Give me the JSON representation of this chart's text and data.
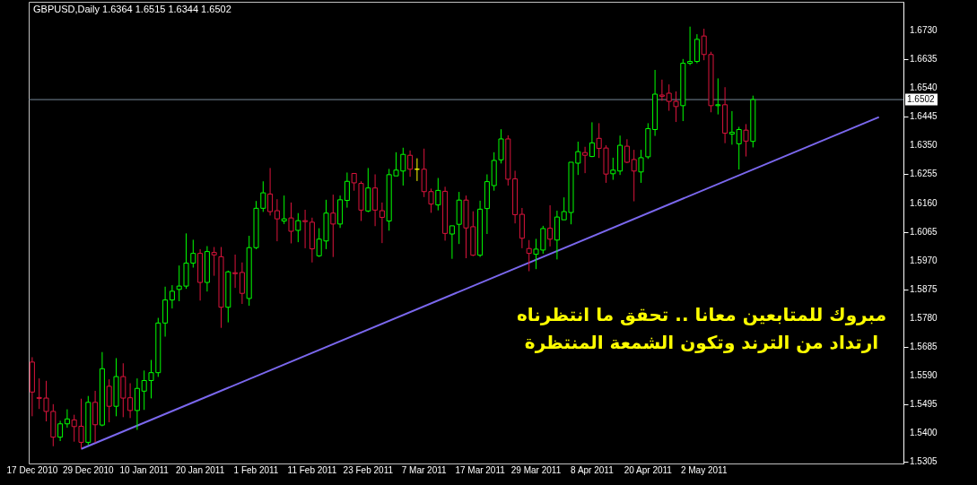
{
  "chart_data": {
    "type": "candlestick",
    "title": "GBPUSD,Daily  1.6364 1.6515 1.6344 1.6502",
    "categories": [
      "17 Dec 2010",
      null,
      null,
      null,
      null,
      null,
      null,
      null,
      "29 Dec 2010",
      null,
      null,
      null,
      null,
      null,
      null,
      null,
      "10 Jan 2011",
      null,
      null,
      null,
      null,
      null,
      null,
      null,
      "20 Jan 2011",
      null,
      null,
      null,
      null,
      null,
      null,
      null,
      "1 Feb 2011",
      null,
      null,
      null,
      null,
      null,
      null,
      null,
      "11 Feb 2011",
      null,
      null,
      null,
      null,
      null,
      null,
      null,
      "23 Feb 2011",
      null,
      null,
      null,
      null,
      null,
      null,
      null,
      "7 Mar 2011",
      null,
      null,
      null,
      null,
      null,
      null,
      null,
      "17 Mar 2011",
      null,
      null,
      null,
      null,
      null,
      null,
      null,
      "29 Mar 2011",
      null,
      null,
      null,
      null,
      null,
      null,
      null,
      "8 Apr 2011",
      null,
      null,
      null,
      null,
      null,
      null,
      null,
      "20 Apr 2011",
      null,
      null,
      null,
      null,
      null,
      null,
      null,
      "2 May 2011",
      null,
      null,
      null,
      null,
      null,
      null,
      null,
      null,
      null,
      null,
      null,
      null,
      null,
      null,
      null,
      null,
      null,
      null,
      null,
      null,
      null,
      null,
      null,
      null,
      null,
      null,
      null,
      null
    ],
    "ohlc": [
      [
        1.5635,
        1.5651,
        1.5456,
        1.5536
      ],
      [
        1.5518,
        1.5581,
        1.548,
        1.5515
      ],
      [
        1.5516,
        1.5573,
        1.5439,
        1.5472
      ],
      [
        1.5472,
        1.5496,
        1.5357,
        1.5387
      ],
      [
        1.5387,
        1.5441,
        1.5374,
        1.5431
      ],
      [
        1.5431,
        1.5479,
        1.5418,
        1.5447
      ],
      [
        1.5444,
        1.5461,
        1.5372,
        1.5422
      ],
      [
        1.5423,
        1.5514,
        1.5349,
        1.537
      ],
      [
        1.537,
        1.5523,
        1.5361,
        1.5502
      ],
      [
        1.5502,
        1.554,
        1.5369,
        1.5428
      ],
      [
        1.5427,
        1.5668,
        1.5423,
        1.5613
      ],
      [
        1.5555,
        1.5578,
        1.5436,
        1.5489
      ],
      [
        1.5489,
        1.5648,
        1.5456,
        1.5587
      ],
      [
        1.5587,
        1.5631,
        1.5453,
        1.5516
      ],
      [
        1.5517,
        1.5565,
        1.545,
        1.5475
      ],
      [
        1.5475,
        1.5581,
        1.5411,
        1.5548
      ],
      [
        1.5539,
        1.5607,
        1.5477,
        1.5574
      ],
      [
        1.5574,
        1.5642,
        1.5515,
        1.56
      ],
      [
        1.56,
        1.5781,
        1.5586,
        1.5764
      ],
      [
        1.5764,
        1.5884,
        1.5719,
        1.584
      ],
      [
        1.584,
        1.5889,
        1.5812,
        1.5869
      ],
      [
        1.5875,
        1.5954,
        1.5836,
        1.5886
      ],
      [
        1.5886,
        1.606,
        1.5877,
        1.5962
      ],
      [
        1.5962,
        1.6039,
        1.5947,
        1.5994
      ],
      [
        1.5994,
        1.6008,
        1.5838,
        1.5898
      ],
      [
        1.5898,
        1.6018,
        1.5868,
        1.6
      ],
      [
        1.5997,
        1.6015,
        1.592,
        1.5989
      ],
      [
        1.5983,
        1.6015,
        1.5748,
        1.5816
      ],
      [
        1.5816,
        1.5937,
        1.5766,
        1.5933
      ],
      [
        1.593,
        1.599,
        1.588,
        1.5927
      ],
      [
        1.5931,
        1.5964,
        1.5827,
        1.5862
      ],
      [
        1.5845,
        1.6052,
        1.5821,
        1.6013
      ],
      [
        1.6013,
        1.6167,
        1.6008,
        1.6143
      ],
      [
        1.6143,
        1.6232,
        1.6131,
        1.6194
      ],
      [
        1.619,
        1.6276,
        1.6119,
        1.6132
      ],
      [
        1.6135,
        1.6173,
        1.6034,
        1.6108
      ],
      [
        1.6101,
        1.6185,
        1.6091,
        1.6108
      ],
      [
        1.6111,
        1.6162,
        1.6027,
        1.6067
      ],
      [
        1.607,
        1.6127,
        1.6031,
        1.6102
      ],
      [
        1.6102,
        1.6138,
        1.6011,
        1.6099
      ],
      [
        1.6097,
        1.6112,
        1.5964,
        1.6009
      ],
      [
        1.5986,
        1.6077,
        1.5982,
        1.6041
      ],
      [
        1.6035,
        1.6171,
        1.6008,
        1.6127
      ],
      [
        1.6127,
        1.6188,
        1.5982,
        1.6091
      ],
      [
        1.6091,
        1.6185,
        1.6078,
        1.6171
      ],
      [
        1.6169,
        1.6261,
        1.6145,
        1.6232
      ],
      [
        1.6258,
        1.6258,
        1.6201,
        1.6227
      ],
      [
        1.6225,
        1.6232,
        1.6101,
        1.6137
      ],
      [
        1.6134,
        1.6276,
        1.613,
        1.621
      ],
      [
        1.621,
        1.6255,
        1.6084,
        1.6137
      ],
      [
        1.6135,
        1.6162,
        1.6028,
        1.6113
      ],
      [
        1.6101,
        1.6273,
        1.6069,
        1.6254
      ],
      [
        1.625,
        1.6328,
        1.625,
        1.6269
      ],
      [
        1.6266,
        1.6343,
        1.6218,
        1.6321
      ],
      [
        1.6318,
        1.6334,
        1.6247,
        1.6272
      ],
      [
        1.6272,
        1.6308,
        1.6233,
        1.6272
      ],
      [
        1.6272,
        1.634,
        1.618,
        1.6198
      ],
      [
        1.6198,
        1.6208,
        1.6128,
        1.6157
      ],
      [
        1.6154,
        1.6243,
        1.6136,
        1.6202
      ],
      [
        1.6199,
        1.6214,
        1.6036,
        1.606
      ],
      [
        1.6058,
        1.6085,
        1.5976,
        1.6085
      ],
      [
        1.609,
        1.6197,
        1.6025,
        1.617
      ],
      [
        1.617,
        1.6185,
        1.5978,
        1.6078
      ],
      [
        1.6082,
        1.6133,
        1.5985,
        1.5988
      ],
      [
        1.5988,
        1.6168,
        1.5982,
        1.614
      ],
      [
        1.6142,
        1.6255,
        1.6058,
        1.6231
      ],
      [
        1.6218,
        1.6328,
        1.6201,
        1.6301
      ],
      [
        1.6303,
        1.6404,
        1.6291,
        1.6372
      ],
      [
        1.6372,
        1.6384,
        1.6218,
        1.6239
      ],
      [
        1.624,
        1.6267,
        1.6093,
        1.6122
      ],
      [
        1.6123,
        1.6144,
        1.6011,
        1.6044
      ],
      [
        1.601,
        1.6038,
        1.5935,
        1.5994
      ],
      [
        1.5991,
        1.6042,
        1.5942,
        1.6008
      ],
      [
        1.6005,
        1.6085,
        1.5993,
        1.6076
      ],
      [
        1.6077,
        1.6153,
        1.6017,
        1.6041
      ],
      [
        1.6038,
        1.6135,
        1.5974,
        1.6114
      ],
      [
        1.6105,
        1.6179,
        1.6105,
        1.6132
      ],
      [
        1.6129,
        1.6295,
        1.609,
        1.6295
      ],
      [
        1.6292,
        1.6363,
        1.6253,
        1.633
      ],
      [
        1.6327,
        1.6346,
        1.6259,
        1.6318
      ],
      [
        1.6314,
        1.6427,
        1.6312,
        1.6359
      ],
      [
        1.6374,
        1.6424,
        1.6309,
        1.6341
      ],
      [
        1.6342,
        1.6351,
        1.6227,
        1.6256
      ],
      [
        1.6257,
        1.631,
        1.6237,
        1.6269
      ],
      [
        1.6266,
        1.6383,
        1.6253,
        1.6351
      ],
      [
        1.6348,
        1.6371,
        1.6292,
        1.6295
      ],
      [
        1.6304,
        1.6336,
        1.6166,
        1.6266
      ],
      [
        1.6263,
        1.6336,
        1.6227,
        1.631
      ],
      [
        1.6313,
        1.6424,
        1.6306,
        1.6406
      ],
      [
        1.6403,
        1.66,
        1.6382,
        1.652
      ],
      [
        1.6517,
        1.6568,
        1.6498,
        1.6513
      ],
      [
        1.6523,
        1.6552,
        1.6465,
        1.6496
      ],
      [
        1.6496,
        1.6529,
        1.6428,
        1.6479
      ],
      [
        1.6482,
        1.6636,
        1.6431,
        1.6622
      ],
      [
        1.6622,
        1.6743,
        1.6616,
        1.6628
      ],
      [
        1.6628,
        1.6718,
        1.6622,
        1.6701
      ],
      [
        1.6712,
        1.6736,
        1.6632,
        1.6651
      ],
      [
        1.6651,
        1.666,
        1.646,
        1.6482
      ],
      [
        1.6482,
        1.6572,
        1.6453,
        1.6485
      ],
      [
        1.6485,
        1.6543,
        1.6358,
        1.6391
      ],
      [
        1.6388,
        1.6464,
        1.6353,
        1.6394
      ],
      [
        1.6356,
        1.6412,
        1.6271,
        1.6403
      ],
      [
        1.6401,
        1.6421,
        1.6314,
        1.6365
      ],
      [
        1.6364,
        1.6515,
        1.6344,
        1.6502
      ],
      null,
      null,
      null,
      null,
      null,
      null,
      null,
      null,
      null,
      null,
      null,
      null,
      null,
      null,
      null,
      null,
      null,
      null,
      null,
      null,
      null
    ],
    "colors": [
      "#dc143c",
      "#dc143c",
      "#dc143c",
      "#dc143c",
      "#00ff00",
      "#00ff00",
      "#dc143c",
      "#dc143c",
      "#00ff00",
      "#dc143c",
      "#00ff00",
      "#dc143c",
      "#00ff00",
      "#dc143c",
      "#dc143c",
      "#00ff00",
      "#00ff00",
      "#00ff00",
      "#00ff00",
      "#00ff00",
      "#00ff00",
      "#00ff00",
      "#00ff00",
      "#00ff00",
      "#dc143c",
      "#00ff00",
      "#dc143c",
      "#dc143c",
      "#00ff00",
      "#dc143c",
      "#dc143c",
      "#00ff00",
      "#00ff00",
      "#00ff00",
      "#dc143c",
      "#dc143c",
      "#00ff00",
      "#dc143c",
      "#00ff00",
      "#dc143c",
      "#dc143c",
      "#00ff00",
      "#00ff00",
      "#dc143c",
      "#00ff00",
      "#00ff00",
      "#dc143c",
      "#dc143c",
      "#00ff00",
      "#dc143c",
      "#dc143c",
      "#00ff00",
      "#00ff00",
      "#00ff00",
      "#dc143c",
      "#ffff00",
      "#dc143c",
      "#dc143c",
      "#00ff00",
      "#dc143c",
      "#00ff00",
      "#00ff00",
      "#dc143c",
      "#dc143c",
      "#00ff00",
      "#00ff00",
      "#00ff00",
      "#00ff00",
      "#dc143c",
      "#dc143c",
      "#dc143c",
      "#dc143c",
      "#00ff00",
      "#00ff00",
      "#dc143c",
      "#00ff00",
      "#00ff00",
      "#00ff00",
      "#00ff00",
      "#dc143c",
      "#00ff00",
      "#dc143c",
      "#dc143c",
      "#00ff00",
      "#00ff00",
      "#dc143c",
      "#dc143c",
      "#00ff00",
      "#00ff00",
      "#00ff00",
      "#dc143c",
      "#dc143c",
      "#dc143c",
      "#00ff00",
      "#00ff00",
      "#00ff00",
      "#dc143c",
      "#dc143c",
      "#00ff00",
      "#dc143c",
      "#00ff00",
      "#00ff00",
      "#dc143c",
      "#00ff00",
      null,
      null,
      null,
      null,
      null,
      null,
      null,
      null,
      null,
      null,
      null,
      null,
      null,
      null,
      null,
      null,
      null,
      null,
      null,
      null,
      null
    ],
    "series": [
      {
        "type": "line",
        "color": "#7b68ee",
        "values": [
          null,
          null,
          null,
          null,
          null,
          null,
          null,
          1.5348,
          null,
          null,
          null,
          null,
          null,
          null,
          null,
          null,
          null,
          null,
          null,
          null,
          null,
          null,
          null,
          null,
          null,
          null,
          null,
          null,
          null,
          null,
          null,
          null,
          null,
          null,
          null,
          null,
          null,
          null,
          null,
          null,
          null,
          null,
          null,
          null,
          null,
          null,
          null,
          null,
          null,
          null,
          null,
          null,
          null,
          null,
          null,
          null,
          null,
          null,
          null,
          null,
          null,
          null,
          null,
          null,
          null,
          null,
          null,
          null,
          null,
          null,
          null,
          null,
          null,
          null,
          null,
          null,
          null,
          null,
          null,
          null,
          null,
          null,
          null,
          null,
          null,
          null,
          null,
          null,
          null,
          null,
          null,
          null,
          null,
          null,
          null,
          null,
          null,
          null,
          null,
          null,
          null,
          null,
          null,
          null,
          null,
          null,
          null,
          null,
          null,
          null,
          null,
          null,
          null,
          null,
          null,
          null,
          null,
          null,
          null,
          null,
          null,
          1.6444,
          null,
          null,
          null
        ]
      }
    ],
    "ylim": [
      1.53,
      1.6825
    ],
    "yticks": [
      {
        "value": 1.673,
        "label": "1.6730"
      },
      1.6635,
      {
        "value": 1.654,
        "label": "1.6540"
      },
      1.6445,
      {
        "value": 1.635,
        "label": "1.6350"
      },
      1.6255,
      {
        "value": 1.616,
        "label": "1.6160"
      },
      1.6065,
      {
        "value": 1.597,
        "label": "1.5970"
      },
      1.5875,
      {
        "value": 1.578,
        "label": "1.5780"
      },
      1.5685,
      {
        "value": 1.559,
        "label": "1.5590"
      },
      1.5495,
      {
        "value": 1.54,
        "label": "1.5400"
      },
      1.5305
    ],
    "ref_lines": [
      {
        "axis": "y",
        "value": 1.6502,
        "label": "1.6502",
        "color": "#778899"
      }
    ],
    "annotations": [
      "مبروك للمتابعين معانا .. تحقق ما انتظرناه",
      "ارتداد من الترند وتكون الشمعة المنتظرة"
    ],
    "grid": false
  }
}
